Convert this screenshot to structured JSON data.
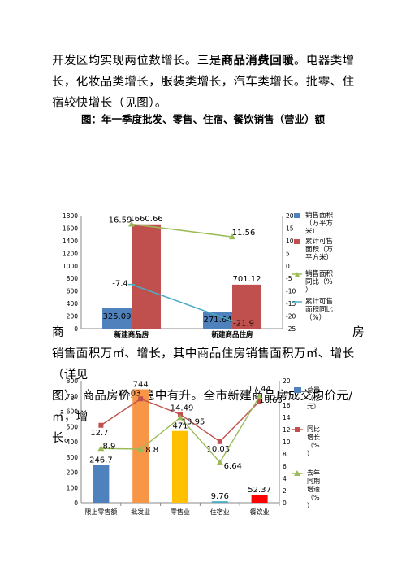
{
  "document": {
    "para1": {
      "text_a": "开发区均实现两位数增长。三是",
      "text_bold": "商品消费回暖",
      "text_b": "。电器类增长，化妆品类增长，服装类增长，汽车类增长。批零、住宿较快增长（见图）。"
    },
    "caption": "图：年一季度批发、零售、住宿、餐饮销售（营业）额",
    "para2": {
      "line1_left": "商",
      "line1_right": "房",
      "line2": "销售面积万㎡、增长，其中商品住房销售面积万㎡、增长（详见",
      "line3": "图）。商品房价格稳中有升。全市新建商品房成交均价元/㎡，增",
      "line4": "长。"
    }
  },
  "colors": {
    "blue": "#4f81bd",
    "red": "#c0504d",
    "green": "#9bbb59",
    "teal": "#4bacc6",
    "orange": "#f79646",
    "yellow": "#ffc000",
    "redbright": "#ff0000"
  },
  "chart_data": [
    {
      "type": "bar",
      "categories": [
        "新建商品房",
        "新建商品住房"
      ],
      "ylim": [
        0,
        1800
      ],
      "ylim2": [
        -25,
        20
      ],
      "series": [
        {
          "name": "销售面积（万平方米）",
          "kind": "bar",
          "axis": "left",
          "values": [
            325.09,
            271.64
          ],
          "labels": [
            "325.09",
            "271.64"
          ]
        },
        {
          "name": "累计可售面积（万平方米）",
          "kind": "bar",
          "axis": "left",
          "values": [
            1660.66,
            701.12
          ],
          "labels": [
            "1660.66",
            "701.12"
          ]
        },
        {
          "name": "销售面积同比（%）",
          "kind": "line",
          "axis": "right",
          "values": [
            16.59,
            11.56
          ],
          "labels": [
            "16.59",
            "11.56"
          ]
        },
        {
          "name": "累计可售面积同比（%）",
          "kind": "line",
          "axis": "right",
          "values": [
            -7.4,
            -21.9
          ],
          "labels": [
            "-7.4",
            "-21.9"
          ]
        }
      ],
      "yticks": [
        "0",
        "200",
        "400",
        "600",
        "800",
        "1000",
        "1200",
        "1400",
        "1600",
        "1800"
      ],
      "yticks2": [
        "-25",
        "-20",
        "-15",
        "-10",
        "-5",
        "0",
        "5",
        "10",
        "15",
        "20"
      ],
      "legend_position": "right"
    },
    {
      "type": "bar",
      "categories": [
        "限上零售额",
        "批发业",
        "零售业",
        "住宿业",
        "餐饮业"
      ],
      "ylim": [
        0,
        800
      ],
      "ylim2": [
        0,
        20
      ],
      "bars": [
        {
          "value": 246.7,
          "label": "246.7"
        },
        {
          "value": 744,
          "label": "744"
        },
        {
          "value": 471,
          "label": "471"
        },
        {
          "value": 9.76,
          "label": "9.76"
        },
        {
          "value": 52.37,
          "label": "52.37"
        }
      ],
      "series": [
        {
          "name": "总量（亿元）",
          "kind": "bar",
          "axis": "left"
        },
        {
          "name": "同比增长（%）",
          "kind": "line",
          "axis": "right",
          "values": [
            12.7,
            17.03,
            14.49,
            10.03,
            16.65
          ],
          "labels": [
            "12.7",
            "17.03",
            "14.49",
            "10.03",
            "16.65"
          ]
        },
        {
          "name": "去年同期增速（%）",
          "kind": "line",
          "axis": "right",
          "values": [
            8.9,
            8.8,
            13.95,
            6.64,
            17.44
          ],
          "labels": [
            "8.9",
            "8.8",
            "13.95",
            "6.64",
            "17.44"
          ]
        }
      ],
      "yticks": [
        "0",
        "100",
        "200",
        "300",
        "400",
        "500",
        "600",
        "700",
        "800"
      ],
      "yticks2": [
        "0",
        "2",
        "4",
        "6",
        "8",
        "10",
        "12",
        "14",
        "16",
        "18",
        "20"
      ],
      "legend_position": "right"
    }
  ]
}
